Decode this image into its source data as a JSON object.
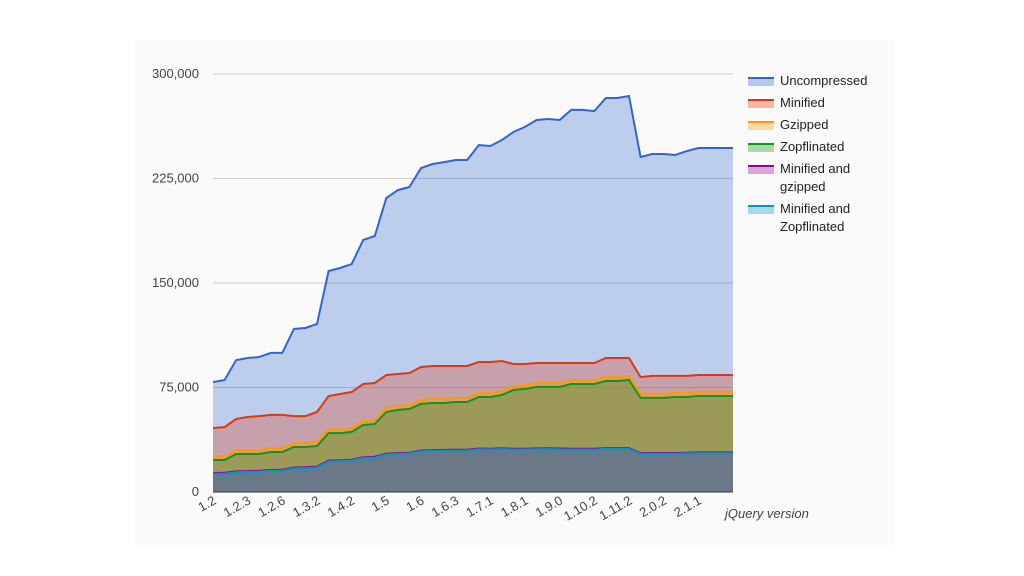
{
  "chart_data": {
    "type": "area",
    "x_label": "jQuery version",
    "categories": [
      "1.2",
      null,
      null,
      "1.2.3",
      null,
      null,
      "1.2.6",
      null,
      null,
      "1.3.2",
      null,
      null,
      "1.4.2",
      null,
      null,
      "1.5",
      null,
      null,
      "1.6",
      null,
      null,
      "1.6.3",
      null,
      null,
      "1.7.1",
      null,
      null,
      "1.8.1",
      null,
      null,
      "1.9.0",
      null,
      null,
      "1.10.2",
      null,
      null,
      "1.11.2",
      null,
      null,
      "2.0.2",
      null,
      null,
      "2.1.1",
      null,
      null,
      null
    ],
    "ylim": [
      0,
      300000
    ],
    "yticks": [
      0,
      {
        "value": 75000,
        "label": "75,000"
      },
      {
        "value": 150000,
        "label": "150,000"
      },
      {
        "value": 225000,
        "label": "225,000"
      },
      {
        "value": 300000,
        "label": "300,000"
      }
    ],
    "grid": true,
    "legend": "right",
    "series": [
      {
        "name": "Uncompressed",
        "color": "#3366cc",
        "values": [
          78900,
          80400,
          94700,
          96200,
          96900,
          99800,
          99800,
          117000,
          117700,
          120600,
          158600,
          160800,
          163600,
          180900,
          183700,
          211000,
          216700,
          218900,
          232500,
          235400,
          236800,
          238300,
          238300,
          249000,
          248300,
          252600,
          258400,
          262000,
          267000,
          267700,
          267000,
          274200,
          274200,
          273400,
          282800,
          282800,
          284200,
          240400,
          242600,
          242600,
          241900,
          244700,
          246900,
          246900,
          246900,
          246900
        ]
      },
      {
        "name": "Minified",
        "color": "#dc3912",
        "values": [
          45900,
          46600,
          52400,
          53800,
          54500,
          55300,
          55300,
          54500,
          54500,
          57400,
          68900,
          70300,
          71800,
          77500,
          78200,
          84000,
          84700,
          85400,
          89700,
          90400,
          90400,
          90400,
          90400,
          93300,
          93300,
          94000,
          91900,
          91900,
          92600,
          92600,
          92600,
          92600,
          92600,
          92600,
          96200,
          96200,
          96200,
          82500,
          83300,
          83300,
          83300,
          83300,
          84000,
          84000,
          84000,
          84000
        ]
      },
      {
        "name": "Gzipped",
        "color": "#ff9900",
        "values": [
          25500,
          25500,
          30000,
          30000,
          30000,
          31500,
          31500,
          35000,
          35000,
          35800,
          45000,
          45000,
          45800,
          50800,
          51500,
          60300,
          61800,
          62500,
          66000,
          66800,
          66800,
          67500,
          67500,
          71000,
          71000,
          72500,
          76000,
          76700,
          78200,
          78200,
          78200,
          80300,
          80300,
          80300,
          82500,
          82500,
          83200,
          70500,
          70500,
          70500,
          71200,
          71200,
          72000,
          72000,
          72000,
          72000
        ]
      },
      {
        "name": "Zopflinated",
        "color": "#109618",
        "values": [
          23000,
          23000,
          27300,
          27300,
          27300,
          28700,
          28700,
          32300,
          32300,
          33000,
          42300,
          42300,
          43100,
          48100,
          48800,
          57400,
          58900,
          59600,
          63200,
          63900,
          63900,
          64600,
          64600,
          68200,
          68200,
          69600,
          73200,
          73900,
          75400,
          75400,
          75400,
          77500,
          77500,
          77500,
          79700,
          79700,
          80400,
          67500,
          67500,
          67500,
          68200,
          68200,
          68900,
          68900,
          68900,
          68900
        ]
      },
      {
        "name": "Minified and gzipped",
        "color": "#990099",
        "values": [
          13600,
          13800,
          14800,
          15000,
          15200,
          15800,
          15900,
          17500,
          17700,
          18200,
          22500,
          22800,
          23200,
          25000,
          25300,
          27500,
          27900,
          28200,
          29800,
          30000,
          30200,
          30300,
          30300,
          31200,
          31100,
          31400,
          31000,
          31100,
          31300,
          31400,
          31200,
          31000,
          31000,
          31000,
          31500,
          31500,
          31500,
          28000,
          28000,
          28000,
          28000,
          28200,
          28400,
          28400,
          28400,
          28400
        ]
      },
      {
        "name": "Minified and Zopflinated",
        "color": "#0099c6",
        "values": [
          13000,
          13200,
          14200,
          14400,
          14600,
          15200,
          15300,
          16900,
          17100,
          17600,
          21900,
          22200,
          22600,
          24400,
          24700,
          26900,
          27300,
          27600,
          29200,
          29400,
          29600,
          29700,
          29700,
          30600,
          30500,
          30800,
          30400,
          30500,
          30700,
          30800,
          30600,
          30400,
          30400,
          30400,
          30900,
          30900,
          30900,
          27400,
          27400,
          27400,
          27400,
          27600,
          27800,
          27800,
          27800,
          27800
        ]
      }
    ]
  }
}
